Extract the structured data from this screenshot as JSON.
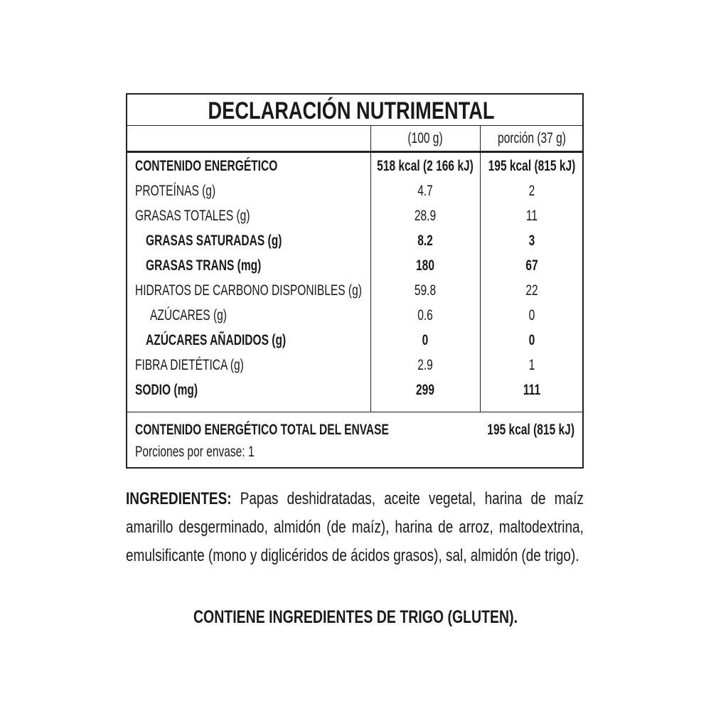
{
  "table": {
    "title": "DECLARACIÓN NUTRIMENTAL",
    "columns": [
      "(100 g)",
      "porción (37 g)"
    ],
    "rows": [
      [
        "CONTENIDO ENERGÉTICO",
        "518 kcal (2 166 kJ)",
        "195 kcal (815 kJ)"
      ],
      [
        "PROTEÍNAS (g)",
        "4.7",
        "2"
      ],
      [
        "GRASAS TOTALES (g)",
        "28.9",
        "11"
      ],
      [
        "GRASAS SATURADAS (g)",
        "8.2",
        "3"
      ],
      [
        "GRASAS TRANS (mg)",
        "180",
        "67"
      ],
      [
        "HIDRATOS DE CARBONO DISPONIBLES (g)",
        "59.8",
        "22"
      ],
      [
        "AZÚCARES (g)",
        "0.6",
        "0"
      ],
      [
        "AZÚCARES AÑADIDOS (g)",
        "0",
        "0"
      ],
      [
        "FIBRA DIETÉTICA (g)",
        "2.9",
        "1"
      ],
      [
        "SODIO (mg)",
        "299",
        "111"
      ]
    ],
    "total": {
      "label": "CONTENIDO ENERGÉTICO TOTAL DEL ENVASE",
      "value": "195 kcal (815 kJ)"
    },
    "portions": "Porciones por envase: 1"
  },
  "ingredients": {
    "label": "INGREDIENTES:",
    "text": "Papas deshidratadas, aceite vegetal, harina de maíz amarillo desgerminado, almidón (de maíz), harina de arroz, maltodextrina, emulsificante (mono y diglicéridos de ácidos grasos), sal, almidón (de trigo)."
  },
  "allergen": "CONTIENE INGREDIENTES DE TRIGO (GLUTEN)."
}
